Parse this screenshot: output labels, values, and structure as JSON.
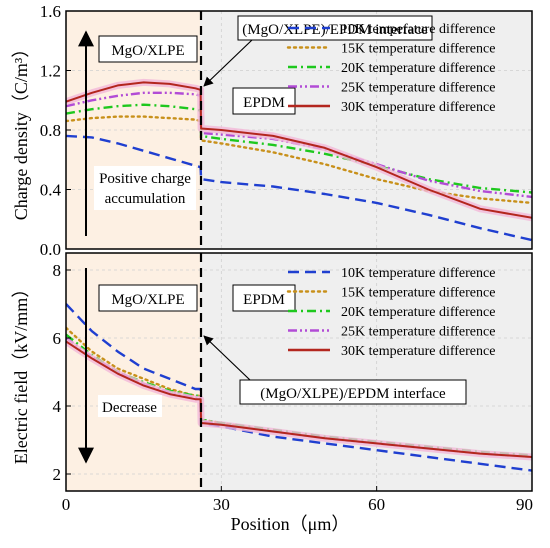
{
  "chart_data": [
    {
      "type": "line",
      "ylabel": "Charge density（C/m³）",
      "xlim": [
        0,
        90
      ],
      "ylim": [
        0,
        1.6
      ],
      "yticks": [
        "0.0",
        "0.4",
        "0.8",
        "1.2",
        "1.6"
      ],
      "interface_x": 26,
      "region_labels": [
        "MgO/XLPE",
        "EPDM"
      ],
      "annotations": [
        "(MgO/XLPE)/EPDM interface",
        "Positive charge accumulation"
      ],
      "annotation_lines": [
        "Positive charge",
        "accumulation"
      ],
      "legend_position": "top-right",
      "series": [
        {
          "name": "10K temperature difference",
          "color": "#1f3fd0",
          "dash": "long-dash",
          "x": [
            0,
            5,
            10,
            15,
            20,
            25,
            26,
            26.1,
            30,
            40,
            50,
            60,
            70,
            80,
            90
          ],
          "y": [
            0.76,
            0.75,
            0.71,
            0.66,
            0.61,
            0.56,
            0.55,
            0.47,
            0.45,
            0.42,
            0.37,
            0.31,
            0.23,
            0.14,
            0.06
          ]
        },
        {
          "name": "15K temperature difference",
          "color": "#c8901a",
          "dash": "dot",
          "x": [
            0,
            5,
            10,
            15,
            20,
            25,
            26,
            26.1,
            30,
            40,
            50,
            60,
            70,
            80,
            90
          ],
          "y": [
            0.86,
            0.88,
            0.89,
            0.89,
            0.88,
            0.87,
            0.86,
            0.73,
            0.71,
            0.65,
            0.57,
            0.47,
            0.39,
            0.34,
            0.31
          ]
        },
        {
          "name": "20K temperature difference",
          "color": "#1ec81e",
          "dash": "dash-dot",
          "x": [
            0,
            5,
            10,
            15,
            20,
            25,
            26,
            26.1,
            30,
            40,
            50,
            60,
            70,
            80,
            90
          ],
          "y": [
            0.91,
            0.94,
            0.96,
            0.97,
            0.96,
            0.94,
            0.93,
            0.76,
            0.74,
            0.7,
            0.64,
            0.56,
            0.47,
            0.41,
            0.38
          ]
        },
        {
          "name": "25K temperature difference",
          "color": "#b24cd6",
          "dash": "dash-dot-dot",
          "x": [
            0,
            5,
            10,
            15,
            20,
            25,
            26,
            26.1,
            30,
            40,
            50,
            60,
            70,
            80,
            90
          ],
          "y": [
            0.96,
            1.0,
            1.03,
            1.05,
            1.05,
            1.04,
            1.03,
            0.78,
            0.77,
            0.74,
            0.67,
            0.57,
            0.46,
            0.39,
            0.35
          ]
        },
        {
          "name": "30K temperature difference",
          "color": "#b3261e",
          "dash": "solid",
          "x": [
            0,
            5,
            10,
            15,
            20,
            25,
            26,
            26.1,
            30,
            40,
            50,
            60,
            70,
            80,
            90
          ],
          "y": [
            0.99,
            1.05,
            1.1,
            1.12,
            1.11,
            1.08,
            1.07,
            0.81,
            0.8,
            0.76,
            0.68,
            0.55,
            0.4,
            0.27,
            0.21
          ]
        }
      ]
    },
    {
      "type": "line",
      "xlabel": "Position（μm）",
      "ylabel": "Electric field（kV/mm）",
      "xlim": [
        0,
        90
      ],
      "ylim": [
        1.5,
        8.5
      ],
      "xticks": [
        "0",
        "30",
        "60",
        "90"
      ],
      "yticks": [
        "2",
        "4",
        "6",
        "8"
      ],
      "interface_x": 26,
      "region_labels": [
        "MgO/XLPE",
        "EPDM"
      ],
      "annotations": [
        "(MgO/XLPE)/EPDM interface",
        "Decrease"
      ],
      "legend_position": "top-right",
      "series": [
        {
          "name": "10K temperature difference",
          "color": "#1f3fd0",
          "dash": "long-dash",
          "x": [
            0,
            5,
            10,
            15,
            20,
            25,
            26,
            26.1,
            30,
            40,
            50,
            60,
            70,
            80,
            90
          ],
          "y": [
            7.0,
            6.2,
            5.6,
            5.1,
            4.8,
            4.5,
            4.5,
            3.5,
            3.4,
            3.1,
            2.9,
            2.7,
            2.5,
            2.3,
            2.1
          ]
        },
        {
          "name": "15K temperature difference",
          "color": "#c8901a",
          "dash": "dot",
          "x": [
            0,
            5,
            10,
            15,
            20,
            25,
            26,
            26.1,
            30,
            40,
            50,
            60,
            70,
            80,
            90
          ],
          "y": [
            6.3,
            5.6,
            5.1,
            4.8,
            4.5,
            4.3,
            4.3,
            3.6,
            3.5,
            3.25,
            3.05,
            2.9,
            2.75,
            2.6,
            2.5
          ]
        },
        {
          "name": "20K temperature difference",
          "color": "#1ec81e",
          "dash": "dash-dot",
          "x": [
            0,
            5,
            10,
            15,
            20,
            25,
            26,
            26.1,
            30,
            40,
            50,
            60,
            70,
            80,
            90
          ],
          "y": [
            6.1,
            5.5,
            5.0,
            4.7,
            4.45,
            4.3,
            4.3,
            3.6,
            3.5,
            3.3,
            3.1,
            2.95,
            2.8,
            2.65,
            2.55
          ]
        },
        {
          "name": "25K temperature difference",
          "color": "#b24cd6",
          "dash": "dash-dot-dot",
          "x": [
            0,
            5,
            10,
            15,
            20,
            25,
            26,
            26.1,
            30,
            40,
            50,
            60,
            70,
            80,
            90
          ],
          "y": [
            6.0,
            5.45,
            5.0,
            4.65,
            4.4,
            4.25,
            4.25,
            3.55,
            3.45,
            3.25,
            3.05,
            2.9,
            2.75,
            2.6,
            2.5
          ]
        },
        {
          "name": "30K temperature difference",
          "color": "#b3261e",
          "dash": "solid",
          "x": [
            0,
            5,
            10,
            15,
            20,
            25,
            26,
            26.1,
            30,
            40,
            50,
            60,
            70,
            80,
            90
          ],
          "y": [
            5.9,
            5.4,
            4.95,
            4.6,
            4.35,
            4.2,
            4.2,
            3.5,
            3.45,
            3.25,
            3.05,
            2.9,
            2.75,
            2.6,
            2.5
          ]
        }
      ]
    }
  ]
}
